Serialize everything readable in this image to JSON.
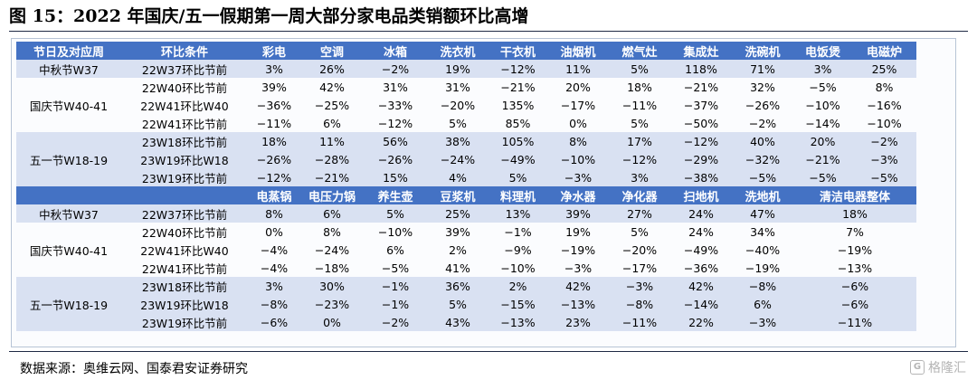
{
  "title": "图 15：2022 年国庆/五一假期第一周大部分家电品类销额环比高增",
  "source": "数据来源：奥维云网、国泰君安证券研究",
  "watermark": "格隆汇",
  "colors": {
    "header_bg": "#4472c4",
    "band_bg": "#d9e1f2",
    "highlight": "#e0201a"
  },
  "table1": {
    "headers": [
      "节日及对应周",
      "环比条件",
      "彩电",
      "空调",
      "冰箱",
      "洗衣机",
      "干衣机",
      "油烟机",
      "燃气灶",
      "集成灶",
      "洗碗机",
      "电饭煲",
      "电磁炉"
    ],
    "groups": [
      {
        "label": "中秋节W37",
        "band": true,
        "rows": [
          {
            "cond": "22W37环比节前",
            "values": [
              {
                "v": "3%",
                "hl": false
              },
              {
                "v": "26%",
                "hl": true
              },
              {
                "v": "−2%",
                "hl": false
              },
              {
                "v": "19%",
                "hl": true
              },
              {
                "v": "−12%",
                "hl": false
              },
              {
                "v": "11%",
                "hl": false
              },
              {
                "v": "5%",
                "hl": false
              },
              {
                "v": "118%",
                "hl": false
              },
              {
                "v": "71%",
                "hl": true
              },
              {
                "v": "3%",
                "hl": false
              },
              {
                "v": "25%",
                "hl": false
              }
            ]
          }
        ]
      },
      {
        "label": "国庆节W40-41",
        "band": false,
        "rows": [
          {
            "cond": "22W40环比节前",
            "values": [
              {
                "v": "39%",
                "hl": true
              },
              {
                "v": "42%",
                "hl": true
              },
              {
                "v": "31%",
                "hl": true
              },
              {
                "v": "31%",
                "hl": true
              },
              {
                "v": "−21%",
                "hl": false
              },
              {
                "v": "20%",
                "hl": false
              },
              {
                "v": "18%",
                "hl": false
              },
              {
                "v": "−21%",
                "hl": false
              },
              {
                "v": "32%",
                "hl": true
              },
              {
                "v": "−5%",
                "hl": false
              },
              {
                "v": "8%",
                "hl": false
              }
            ]
          },
          {
            "cond": "22W41环比W40",
            "values": [
              {
                "v": "−36%",
                "hl": false
              },
              {
                "v": "−25%",
                "hl": false
              },
              {
                "v": "−33%",
                "hl": false
              },
              {
                "v": "−20%",
                "hl": false
              },
              {
                "v": "135%",
                "hl": false
              },
              {
                "v": "−17%",
                "hl": false
              },
              {
                "v": "−11%",
                "hl": false
              },
              {
                "v": "−37%",
                "hl": false
              },
              {
                "v": "−26%",
                "hl": false
              },
              {
                "v": "−10%",
                "hl": false
              },
              {
                "v": "−16%",
                "hl": false
              }
            ]
          },
          {
            "cond": "22W41环比节前",
            "values": [
              {
                "v": "−11%",
                "hl": false
              },
              {
                "v": "6%",
                "hl": false
              },
              {
                "v": "−12%",
                "hl": false
              },
              {
                "v": "5%",
                "hl": false
              },
              {
                "v": "85%",
                "hl": false
              },
              {
                "v": "0%",
                "hl": false
              },
              {
                "v": "5%",
                "hl": false
              },
              {
                "v": "−50%",
                "hl": false
              },
              {
                "v": "−2%",
                "hl": false
              },
              {
                "v": "−14%",
                "hl": false
              },
              {
                "v": "−10%",
                "hl": false
              }
            ]
          }
        ]
      },
      {
        "label": "五一节W18-19",
        "band": true,
        "rows": [
          {
            "cond": "23W18环比节前",
            "values": [
              {
                "v": "18%",
                "hl": true
              },
              {
                "v": "11%",
                "hl": true
              },
              {
                "v": "56%",
                "hl": true
              },
              {
                "v": "38%",
                "hl": true
              },
              {
                "v": "105%",
                "hl": false
              },
              {
                "v": "8%",
                "hl": false
              },
              {
                "v": "17%",
                "hl": false
              },
              {
                "v": "−12%",
                "hl": false
              },
              {
                "v": "40%",
                "hl": true
              },
              {
                "v": "20%",
                "hl": false
              },
              {
                "v": "−2%",
                "hl": false
              }
            ]
          },
          {
            "cond": "23W19环比W18",
            "values": [
              {
                "v": "−26%",
                "hl": false
              },
              {
                "v": "−28%",
                "hl": false
              },
              {
                "v": "−26%",
                "hl": false
              },
              {
                "v": "−24%",
                "hl": false
              },
              {
                "v": "−49%",
                "hl": false
              },
              {
                "v": "−10%",
                "hl": false
              },
              {
                "v": "−12%",
                "hl": false
              },
              {
                "v": "−29%",
                "hl": false
              },
              {
                "v": "−32%",
                "hl": false
              },
              {
                "v": "−21%",
                "hl": false
              },
              {
                "v": "−3%",
                "hl": false
              }
            ]
          },
          {
            "cond": "23W19环比节前",
            "values": [
              {
                "v": "−12%",
                "hl": false
              },
              {
                "v": "−21%",
                "hl": false
              },
              {
                "v": "15%",
                "hl": true
              },
              {
                "v": "4%",
                "hl": false
              },
              {
                "v": "5%",
                "hl": false
              },
              {
                "v": "−3%",
                "hl": false
              },
              {
                "v": "3%",
                "hl": false
              },
              {
                "v": "−38%",
                "hl": false
              },
              {
                "v": "−5%",
                "hl": false
              },
              {
                "v": "−5%",
                "hl": false
              },
              {
                "v": "−5%",
                "hl": false
              }
            ]
          }
        ]
      }
    ]
  },
  "table2": {
    "headers": [
      "电蒸锅",
      "电压力锅",
      "养生壶",
      "豆浆机",
      "料理机",
      "净水器",
      "净化器",
      "扫地机",
      "洗地机",
      "清洁电器整体"
    ],
    "groups": [
      {
        "label": "中秋节W37",
        "band": true,
        "rows": [
          {
            "cond": "22W37环比节前",
            "values": [
              {
                "v": "8%",
                "hl": false
              },
              {
                "v": "6%",
                "hl": false
              },
              {
                "v": "5%",
                "hl": false
              },
              {
                "v": "25%",
                "hl": true
              },
              {
                "v": "13%",
                "hl": false
              },
              {
                "v": "39%",
                "hl": true
              },
              {
                "v": "27%",
                "hl": false
              },
              {
                "v": "24%",
                "hl": true
              },
              {
                "v": "47%",
                "hl": true
              },
              {
                "v": "18%",
                "hl": false
              }
            ]
          }
        ]
      },
      {
        "label": "国庆节W40-41",
        "band": false,
        "rows": [
          {
            "cond": "22W40环比节前",
            "values": [
              {
                "v": "0%",
                "hl": false
              },
              {
                "v": "8%",
                "hl": false
              },
              {
                "v": "−10%",
                "hl": false
              },
              {
                "v": "39%",
                "hl": true
              },
              {
                "v": "−1%",
                "hl": false
              },
              {
                "v": "19%",
                "hl": true
              },
              {
                "v": "5%",
                "hl": false
              },
              {
                "v": "24%",
                "hl": true
              },
              {
                "v": "34%",
                "hl": true
              },
              {
                "v": "7%",
                "hl": false
              }
            ]
          },
          {
            "cond": "22W41环比W40",
            "values": [
              {
                "v": "−4%",
                "hl": false
              },
              {
                "v": "−24%",
                "hl": false
              },
              {
                "v": "6%",
                "hl": false
              },
              {
                "v": "2%",
                "hl": false
              },
              {
                "v": "−9%",
                "hl": false
              },
              {
                "v": "−19%",
                "hl": false
              },
              {
                "v": "−20%",
                "hl": false
              },
              {
                "v": "−49%",
                "hl": false
              },
              {
                "v": "−40%",
                "hl": false
              },
              {
                "v": "−19%",
                "hl": false
              }
            ]
          },
          {
            "cond": "22W41环比节前",
            "values": [
              {
                "v": "−4%",
                "hl": false
              },
              {
                "v": "−18%",
                "hl": false
              },
              {
                "v": "−5%",
                "hl": false
              },
              {
                "v": "41%",
                "hl": false
              },
              {
                "v": "−10%",
                "hl": false
              },
              {
                "v": "−3%",
                "hl": false
              },
              {
                "v": "−17%",
                "hl": false
              },
              {
                "v": "−36%",
                "hl": false
              },
              {
                "v": "−19%",
                "hl": false
              },
              {
                "v": "−13%",
                "hl": false
              }
            ]
          }
        ]
      },
      {
        "label": "五一节W18-19",
        "band": true,
        "rows": [
          {
            "cond": "23W18环比节前",
            "values": [
              {
                "v": "3%",
                "hl": false
              },
              {
                "v": "30%",
                "hl": false
              },
              {
                "v": "−1%",
                "hl": false
              },
              {
                "v": "36%",
                "hl": true
              },
              {
                "v": "2%",
                "hl": false
              },
              {
                "v": "42%",
                "hl": true
              },
              {
                "v": "−3%",
                "hl": false
              },
              {
                "v": "42%",
                "hl": true
              },
              {
                "v": "−8%",
                "hl": false
              },
              {
                "v": "−6%",
                "hl": false
              }
            ]
          },
          {
            "cond": "23W19环比W18",
            "values": [
              {
                "v": "−8%",
                "hl": false
              },
              {
                "v": "−23%",
                "hl": false
              },
              {
                "v": "−1%",
                "hl": false
              },
              {
                "v": "5%",
                "hl": false
              },
              {
                "v": "−15%",
                "hl": false
              },
              {
                "v": "−13%",
                "hl": false
              },
              {
                "v": "−8%",
                "hl": false
              },
              {
                "v": "−14%",
                "hl": false
              },
              {
                "v": "6%",
                "hl": false
              },
              {
                "v": "−6%",
                "hl": false
              }
            ]
          },
          {
            "cond": "23W19环比节前",
            "values": [
              {
                "v": "−6%",
                "hl": false
              },
              {
                "v": "0%",
                "hl": false
              },
              {
                "v": "−2%",
                "hl": false
              },
              {
                "v": "43%",
                "hl": true
              },
              {
                "v": "−13%",
                "hl": false
              },
              {
                "v": "23%",
                "hl": true
              },
              {
                "v": "−11%",
                "hl": false
              },
              {
                "v": "22%",
                "hl": true
              },
              {
                "v": "−3%",
                "hl": false
              },
              {
                "v": "−11%",
                "hl": false
              }
            ]
          }
        ]
      }
    ]
  }
}
